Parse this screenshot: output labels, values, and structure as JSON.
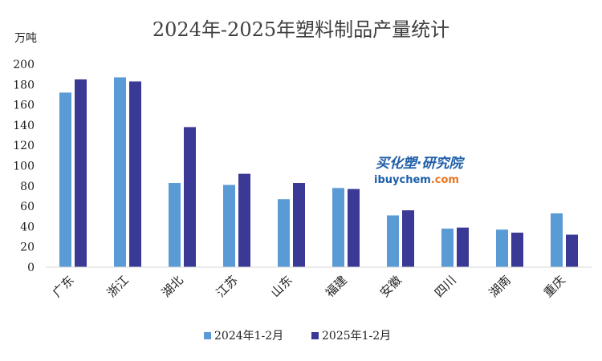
{
  "watermark": {
    "cn": "买化塑·研究院",
    "en_prefix": "ibuychem",
    "en_suffix": ".com",
    "color_cn": "#1f5fa8",
    "color_en_prefix": "#1f5fa8",
    "color_en_suffix": "#e87722"
  },
  "chart_data": {
    "type": "bar",
    "title": "2024年-2025年塑料制品产量统计",
    "ylabel": "万吨",
    "xlabel": "",
    "categories": [
      "广东",
      "浙江",
      "湖北",
      "江苏",
      "山东",
      "福建",
      "安徽",
      "四川",
      "湖南",
      "重庆"
    ],
    "series": [
      {
        "name": "2024年1-2月",
        "color": "#5b9bd5",
        "values": [
          172,
          187,
          83,
          81,
          67,
          78,
          51,
          38,
          37,
          53
        ]
      },
      {
        "name": "2025年1-2月",
        "color": "#3a3996",
        "values": [
          185,
          183,
          138,
          92,
          83,
          77,
          56,
          39,
          34,
          32
        ]
      }
    ],
    "ylim": [
      0,
      200
    ],
    "yticks": [
      0,
      20,
      40,
      60,
      80,
      100,
      120,
      140,
      160,
      180,
      200
    ],
    "grid": false,
    "legend_position": "bottom"
  }
}
